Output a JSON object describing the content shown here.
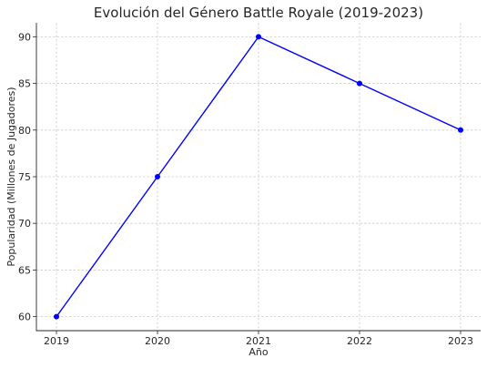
{
  "chart_data": {
    "type": "line",
    "title": "Evolución del Género Battle Royale (2019-2023)",
    "xlabel": "Año",
    "ylabel": "Popularidad (Millones de Jugadores)",
    "x": [
      "2019",
      "2020",
      "2021",
      "2022",
      "2023"
    ],
    "series": [
      {
        "values": [
          60,
          75,
          90,
          85,
          80
        ],
        "color": "#0000ff"
      }
    ],
    "ylim": [
      58.5,
      91.5
    ],
    "yticks": [
      60,
      65,
      70,
      75,
      80,
      85,
      90
    ],
    "grid": true,
    "legend": "none"
  }
}
